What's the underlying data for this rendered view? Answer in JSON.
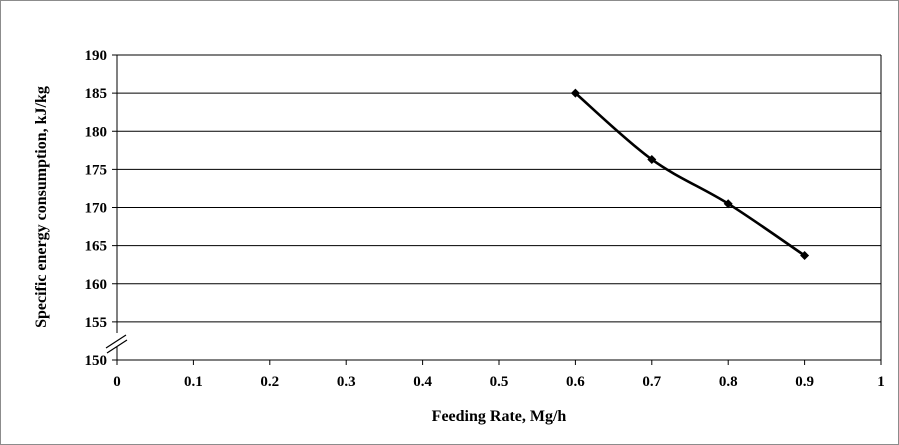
{
  "chart_data": {
    "type": "line",
    "title": "",
    "xlabel": "Feeding Rate, Mg/h",
    "ylabel": "Specific energy consumption, kJ/kg",
    "xlim": [
      0,
      1
    ],
    "ylim": [
      150,
      190
    ],
    "x_ticks": [
      "0",
      "0.1",
      "0.2",
      "0.3",
      "0.4",
      "0.5",
      "0.6",
      "0.7",
      "0.8",
      "0.9",
      "1"
    ],
    "y_ticks": [
      "150",
      "155",
      "160",
      "165",
      "170",
      "175",
      "180",
      "185",
      "190"
    ],
    "y_axis_break": true,
    "grid": "horizontal",
    "legend": "none",
    "series": [
      {
        "x": [
          0.6,
          0.7,
          0.8,
          0.9
        ],
        "y": [
          185.0,
          176.3,
          170.5,
          163.7
        ],
        "color": "#000000",
        "marker": "diamond"
      }
    ]
  }
}
